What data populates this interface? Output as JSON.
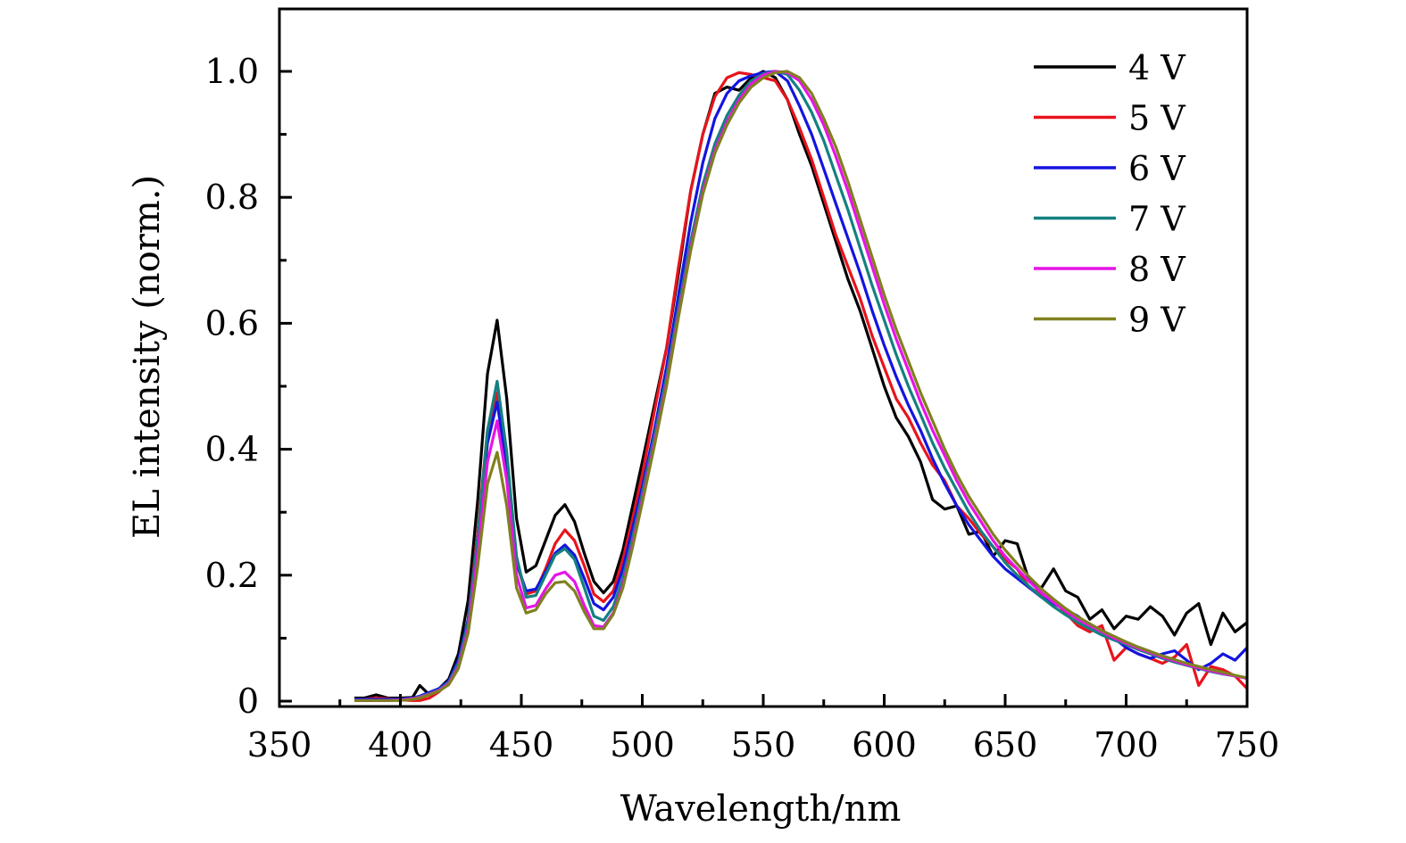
{
  "chart_data": {
    "type": "line",
    "title": "",
    "xlabel": "Wavelength/nm",
    "ylabel": "EL intensity (norm.)",
    "xlim": [
      350,
      750
    ],
    "ylim": [
      0,
      1.1
    ],
    "xticks": [
      350,
      400,
      450,
      500,
      550,
      600,
      650,
      700,
      750
    ],
    "xtick_labels": [
      "350",
      "400",
      "450",
      "500",
      "550",
      "600",
      "650",
      "700",
      "750"
    ],
    "yticks": [
      0,
      0.2,
      0.4,
      0.6,
      0.8,
      1.0
    ],
    "ytick_labels": [
      "0",
      "0.2",
      "0.4",
      "0.6",
      "0.8",
      "1.0"
    ],
    "x_minor_step": 25,
    "y_minor_step": 0.1,
    "grid": false,
    "legend": {
      "placement": "top-right"
    },
    "x": [
      381,
      385,
      390,
      395,
      400,
      405,
      408,
      412,
      416,
      420,
      424,
      428,
      432,
      436,
      440,
      444,
      448,
      452,
      456,
      460,
      464,
      468,
      472,
      476,
      480,
      484,
      488,
      492,
      496,
      500,
      505,
      510,
      515,
      520,
      525,
      530,
      535,
      540,
      545,
      550,
      555,
      560,
      565,
      570,
      575,
      580,
      585,
      590,
      595,
      600,
      605,
      610,
      615,
      620,
      625,
      630,
      635,
      640,
      645,
      650,
      655,
      660,
      665,
      670,
      675,
      680,
      685,
      690,
      695,
      700,
      705,
      710,
      715,
      720,
      725,
      730,
      735,
      740,
      745,
      750
    ],
    "series": [
      {
        "name": "4 V",
        "color": "#000000",
        "values": [
          0.005,
          0.005,
          0.01,
          0.005,
          0.005,
          0.006,
          0.025,
          0.01,
          0.02,
          0.035,
          0.075,
          0.16,
          0.32,
          0.52,
          0.605,
          0.48,
          0.29,
          0.205,
          0.215,
          0.255,
          0.295,
          0.312,
          0.285,
          0.235,
          0.19,
          0.172,
          0.19,
          0.24,
          0.31,
          0.38,
          0.47,
          0.56,
          0.68,
          0.81,
          0.9,
          0.965,
          0.975,
          0.97,
          0.99,
          1.0,
          0.99,
          0.955,
          0.9,
          0.85,
          0.79,
          0.73,
          0.67,
          0.62,
          0.56,
          0.5,
          0.45,
          0.42,
          0.38,
          0.32,
          0.305,
          0.31,
          0.265,
          0.27,
          0.23,
          0.255,
          0.25,
          0.19,
          0.18,
          0.21,
          0.175,
          0.165,
          0.13,
          0.145,
          0.115,
          0.135,
          0.13,
          0.15,
          0.135,
          0.105,
          0.14,
          0.155,
          0.09,
          0.14,
          0.11,
          0.125
        ]
      },
      {
        "name": "5 V",
        "color": "#e8141c",
        "values": [
          0.002,
          0.003,
          0.005,
          0.004,
          0.002,
          0.001,
          0.001,
          0.005,
          0.015,
          0.03,
          0.06,
          0.13,
          0.27,
          0.43,
          0.49,
          0.38,
          0.22,
          0.17,
          0.175,
          0.21,
          0.25,
          0.272,
          0.255,
          0.215,
          0.17,
          0.158,
          0.175,
          0.225,
          0.29,
          0.36,
          0.46,
          0.56,
          0.69,
          0.81,
          0.9,
          0.96,
          0.99,
          0.998,
          0.995,
          0.99,
          0.985,
          0.955,
          0.91,
          0.86,
          0.8,
          0.74,
          0.69,
          0.64,
          0.58,
          0.53,
          0.48,
          0.45,
          0.41,
          0.375,
          0.35,
          0.31,
          0.29,
          0.265,
          0.245,
          0.225,
          0.21,
          0.18,
          0.17,
          0.16,
          0.14,
          0.12,
          0.11,
          0.12,
          0.065,
          0.085,
          0.075,
          0.068,
          0.06,
          0.07,
          0.09,
          0.025,
          0.055,
          0.05,
          0.04,
          0.02
        ]
      },
      {
        "name": "6 V",
        "color": "#1414e0",
        "values": [
          0.003,
          0.003,
          0.003,
          0.003,
          0.003,
          0.005,
          0.008,
          0.014,
          0.02,
          0.032,
          0.065,
          0.13,
          0.26,
          0.41,
          0.475,
          0.37,
          0.22,
          0.175,
          0.178,
          0.205,
          0.235,
          0.248,
          0.232,
          0.195,
          0.155,
          0.145,
          0.165,
          0.21,
          0.275,
          0.34,
          0.43,
          0.53,
          0.645,
          0.76,
          0.855,
          0.925,
          0.965,
          0.985,
          0.993,
          0.998,
          1.0,
          0.985,
          0.945,
          0.9,
          0.845,
          0.79,
          0.735,
          0.68,
          0.62,
          0.565,
          0.515,
          0.47,
          0.43,
          0.385,
          0.345,
          0.31,
          0.28,
          0.255,
          0.23,
          0.21,
          0.195,
          0.18,
          0.165,
          0.155,
          0.145,
          0.135,
          0.12,
          0.11,
          0.1,
          0.085,
          0.075,
          0.068,
          0.075,
          0.08,
          0.065,
          0.05,
          0.06,
          0.075,
          0.065,
          0.085
        ]
      },
      {
        "name": "7 V",
        "color": "#148080",
        "values": [
          0.001,
          0.001,
          0.001,
          0.001,
          0.002,
          0.004,
          0.007,
          0.012,
          0.018,
          0.03,
          0.06,
          0.125,
          0.26,
          0.43,
          0.508,
          0.395,
          0.23,
          0.165,
          0.168,
          0.2,
          0.232,
          0.242,
          0.225,
          0.18,
          0.135,
          0.128,
          0.15,
          0.195,
          0.26,
          0.33,
          0.42,
          0.515,
          0.625,
          0.73,
          0.82,
          0.885,
          0.93,
          0.962,
          0.985,
          0.996,
          1.0,
          0.995,
          0.97,
          0.935,
          0.89,
          0.835,
          0.78,
          0.72,
          0.66,
          0.605,
          0.55,
          0.5,
          0.455,
          0.41,
          0.37,
          0.335,
          0.3,
          0.27,
          0.245,
          0.22,
          0.2,
          0.182,
          0.165,
          0.15,
          0.137,
          0.125,
          0.115,
          0.105,
          0.097,
          0.09,
          0.082,
          0.075,
          0.068,
          0.062,
          0.057,
          0.052,
          0.047,
          0.043,
          0.04,
          0.037
        ]
      },
      {
        "name": "8 V",
        "color": "#e614e6",
        "values": [
          0.001,
          0.001,
          0.001,
          0.001,
          0.002,
          0.004,
          0.006,
          0.011,
          0.017,
          0.028,
          0.055,
          0.115,
          0.235,
          0.38,
          0.445,
          0.35,
          0.2,
          0.148,
          0.152,
          0.178,
          0.2,
          0.205,
          0.19,
          0.152,
          0.12,
          0.118,
          0.14,
          0.185,
          0.25,
          0.32,
          0.41,
          0.505,
          0.615,
          0.72,
          0.81,
          0.875,
          0.92,
          0.955,
          0.98,
          0.994,
          1.0,
          0.998,
          0.985,
          0.955,
          0.915,
          0.865,
          0.81,
          0.75,
          0.69,
          0.63,
          0.575,
          0.525,
          0.475,
          0.43,
          0.39,
          0.35,
          0.315,
          0.285,
          0.255,
          0.23,
          0.21,
          0.19,
          0.172,
          0.157,
          0.143,
          0.13,
          0.12,
          0.11,
          0.1,
          0.092,
          0.084,
          0.077,
          0.07,
          0.064,
          0.058,
          0.053,
          0.048,
          0.044,
          0.04,
          0.036
        ]
      },
      {
        "name": "9 V",
        "color": "#808020",
        "values": [
          0.001,
          0.001,
          0.001,
          0.001,
          0.001,
          0.003,
          0.005,
          0.01,
          0.016,
          0.026,
          0.052,
          0.108,
          0.215,
          0.345,
          0.395,
          0.31,
          0.18,
          0.14,
          0.145,
          0.17,
          0.188,
          0.19,
          0.175,
          0.142,
          0.115,
          0.115,
          0.138,
          0.18,
          0.245,
          0.315,
          0.405,
          0.5,
          0.61,
          0.715,
          0.805,
          0.87,
          0.915,
          0.95,
          0.975,
          0.99,
          0.998,
          1.0,
          0.99,
          0.965,
          0.925,
          0.88,
          0.825,
          0.765,
          0.705,
          0.645,
          0.59,
          0.54,
          0.49,
          0.445,
          0.4,
          0.36,
          0.325,
          0.295,
          0.265,
          0.24,
          0.218,
          0.197,
          0.178,
          0.162,
          0.147,
          0.134,
          0.123,
          0.112,
          0.103,
          0.094,
          0.086,
          0.079,
          0.072,
          0.066,
          0.06,
          0.055,
          0.05,
          0.046,
          0.041,
          0.037
        ]
      }
    ]
  }
}
